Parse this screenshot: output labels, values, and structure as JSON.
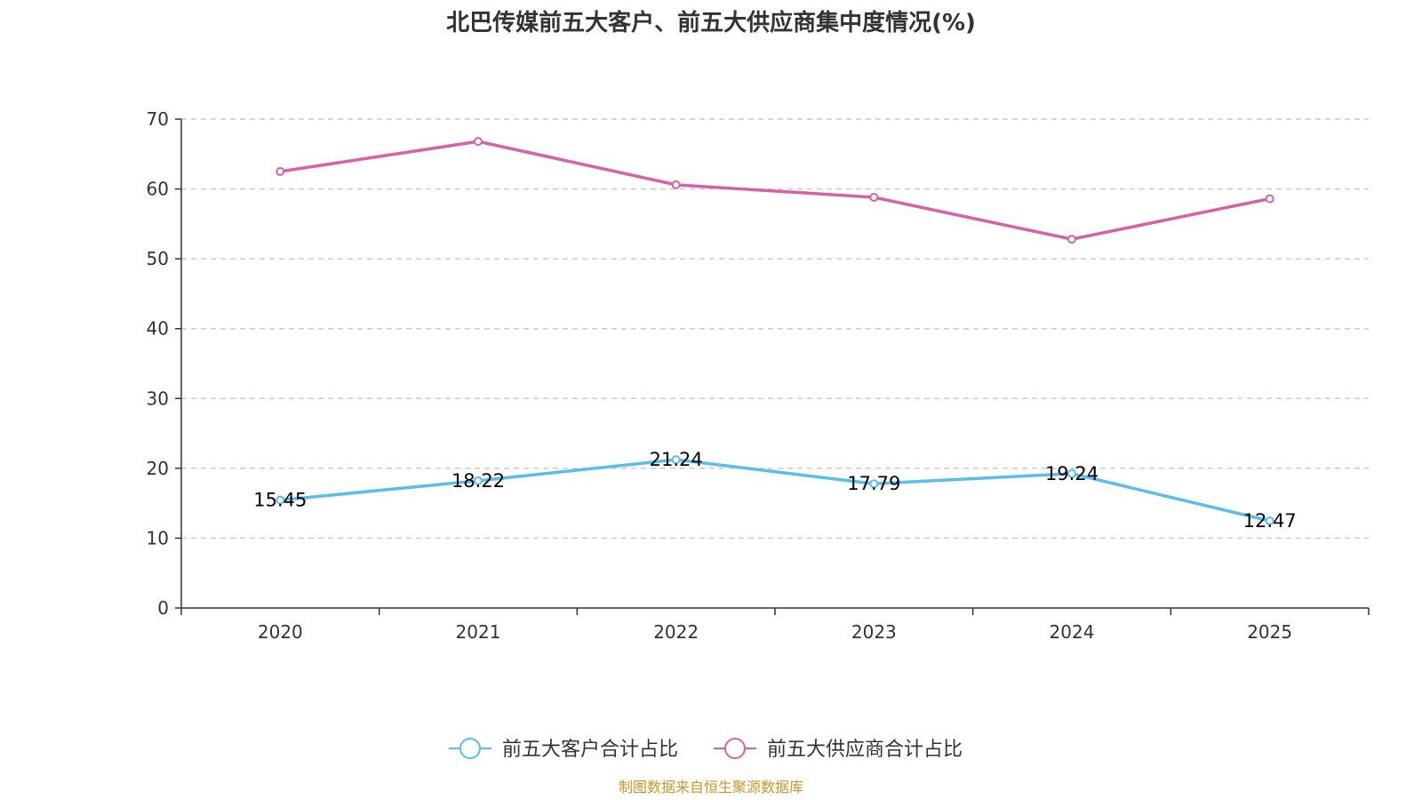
{
  "chart_data": {
    "type": "line",
    "title": "北巴传媒前五大客户、前五大供应商集中度情况(%)",
    "categories": [
      "2020",
      "2021",
      "2022",
      "2023",
      "2024",
      "2025"
    ],
    "y_ticks": [
      "0",
      "10",
      "20",
      "30",
      "40",
      "50",
      "60",
      "70"
    ],
    "ylim": [
      0,
      70
    ],
    "grid": true,
    "legend_position": "bottom",
    "series": [
      {
        "name": "前五大客户合计占比",
        "color": "#5bbcee",
        "values": [
          15.45,
          18.22,
          21.24,
          17.79,
          19.24,
          12.47
        ],
        "labels": [
          "15.45",
          "18.22",
          "21.24",
          "17.79",
          "19.24",
          "12.47"
        ],
        "show_labels": true
      },
      {
        "name": "前五大供应商合计占比",
        "color": "#d562a8",
        "values": [
          62.5,
          66.8,
          60.6,
          58.8,
          52.8,
          58.6
        ],
        "show_labels": false
      }
    ],
    "source": "制图数据来自恒生聚源数据库"
  }
}
